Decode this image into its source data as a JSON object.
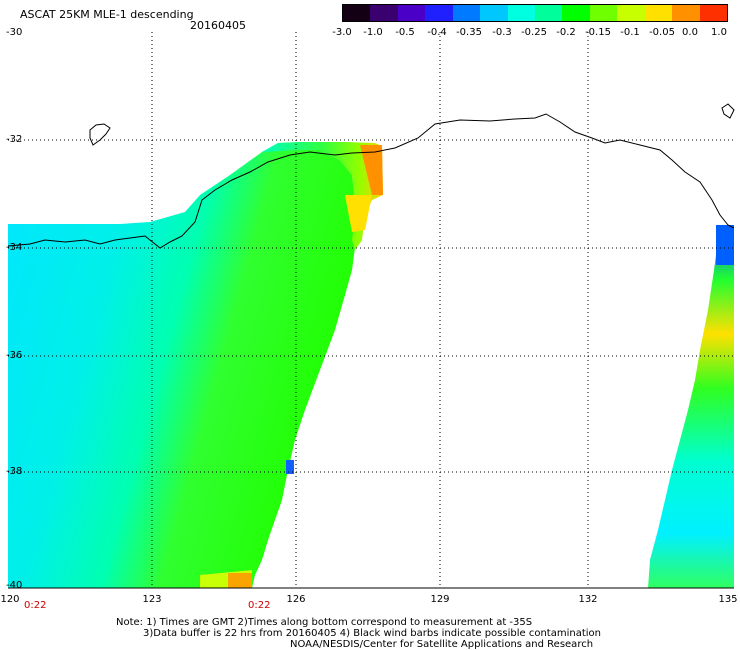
{
  "header": {
    "title": "ASCAT 25KM MLE-1 descending",
    "date": "20160405"
  },
  "colorbar": {
    "labels": [
      "-3.0",
      "-1.0",
      "-0.5",
      "-0.4",
      "-0.35",
      "-0.3",
      "-0.25",
      "-0.2",
      "-0.15",
      "-0.1",
      "-0.05",
      "0.0",
      "1.0"
    ],
    "colors": [
      "#140014",
      "#3a0070",
      "#4b00c8",
      "#2020ff",
      "#007aff",
      "#00c8ff",
      "#00ffe0",
      "#00ff9a",
      "#00ff00",
      "#70ff00",
      "#c8ff00",
      "#ffe000",
      "#ff9000",
      "#ff3000"
    ]
  },
  "map": {
    "lat_labels": [
      "-30",
      "-32",
      "-34",
      "-36",
      "-38",
      "-40"
    ],
    "lon_labels": [
      "120",
      "123",
      "126",
      "129",
      "132",
      "135"
    ],
    "time_labels": [
      "0:22",
      "0:22"
    ]
  },
  "notes": {
    "line1": "Note: 1) Times are GMT 2)Times along bottom correspond to measurement at -35S",
    "line2": "3)Data buffer is 22 hrs from 20160405 4) Black wind barbs indicate possible contamination",
    "line3": "NOAA/NESDIS/Center for Satellite Applications and Research"
  }
}
